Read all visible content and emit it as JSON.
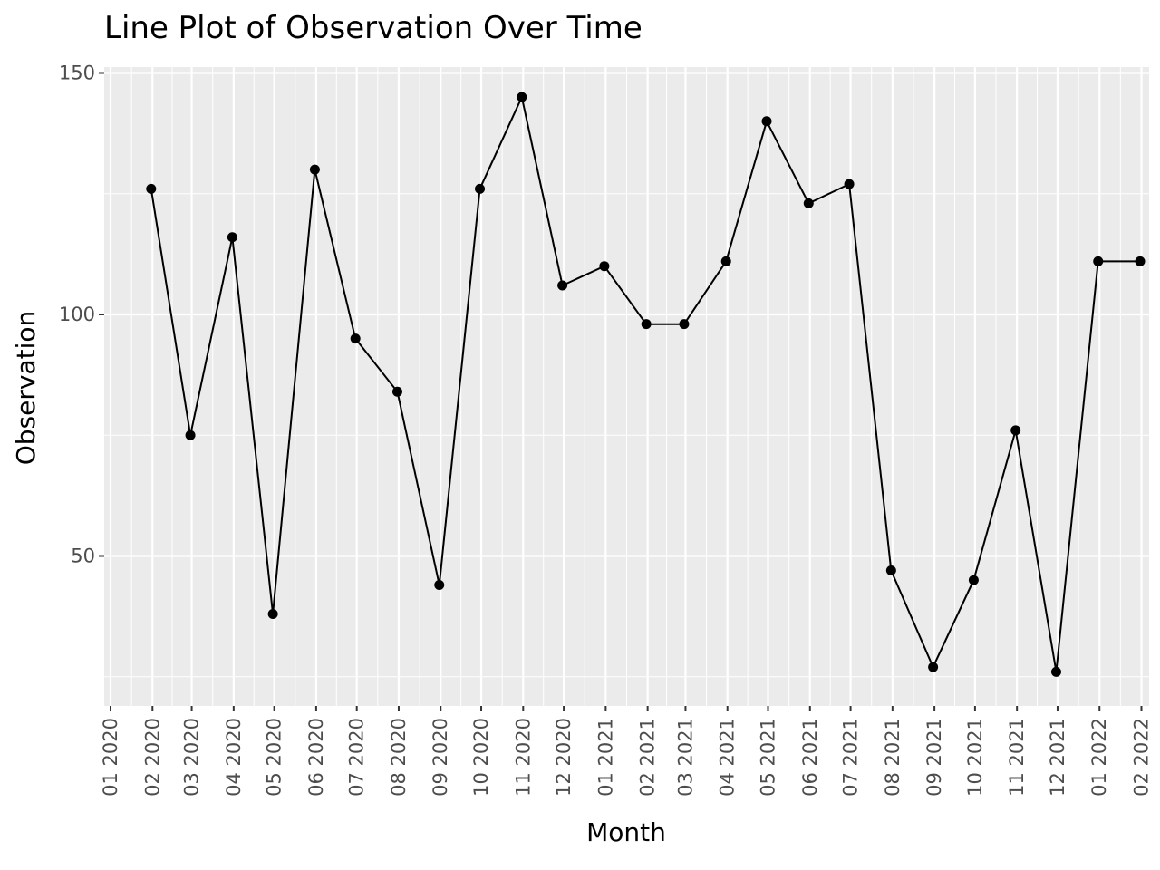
{
  "chart_data": {
    "type": "line",
    "title": "Line Plot of Observation Over Time",
    "xlabel": "Month",
    "ylabel": "Observation",
    "x_tick_labels": [
      "01 2020",
      "02 2020",
      "03 2020",
      "04 2020",
      "05 2020",
      "06 2020",
      "07 2020",
      "08 2020",
      "09 2020",
      "10 2020",
      "11 2020",
      "12 2020",
      "01 2021",
      "02 2021",
      "03 2021",
      "04 2021",
      "05 2021",
      "06 2021",
      "07 2021",
      "08 2021",
      "09 2021",
      "10 2021",
      "11 2021",
      "12 2021",
      "01 2022",
      "02 2022"
    ],
    "y_ticks": [
      50,
      100,
      150
    ],
    "y_tick_labels": [
      "50",
      "100",
      "150"
    ],
    "ylim": [
      20,
      150
    ],
    "grid": true,
    "colors": {
      "panel": "#ebebeb",
      "grid": "#ffffff",
      "line": "#000000",
      "point": "#000000",
      "tick_text": "#4d4d4d"
    },
    "series": [
      {
        "x": [
          "2020-01-31",
          "2020-02-29",
          "2020-03-31",
          "2020-04-30",
          "2020-05-31",
          "2020-06-30",
          "2020-07-31",
          "2020-08-31",
          "2020-09-30",
          "2020-10-31",
          "2020-11-30",
          "2020-12-31",
          "2021-01-31",
          "2021-02-28",
          "2021-03-31",
          "2021-04-30",
          "2021-05-31",
          "2021-06-30",
          "2021-07-31",
          "2021-08-31",
          "2021-09-30",
          "2021-10-31",
          "2021-11-30",
          "2021-12-31",
          "2022-01-31"
        ],
        "values": [
          126,
          75,
          116,
          38,
          130,
          95,
          84,
          44,
          126,
          145,
          106,
          110,
          98,
          98,
          111,
          140,
          123,
          127,
          47,
          27,
          45,
          76,
          26,
          111,
          111
        ]
      }
    ]
  }
}
